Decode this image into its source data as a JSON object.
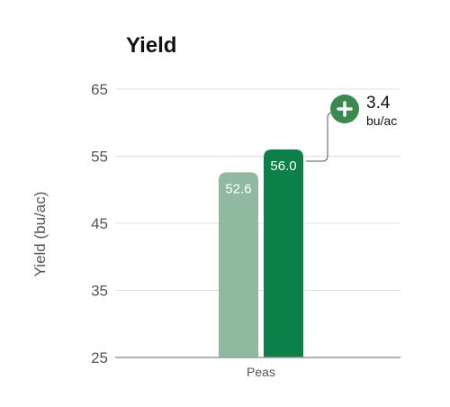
{
  "chart_data": {
    "type": "bar",
    "title": "Yield",
    "ylabel": "Yield (bu/ac)",
    "xlabel": "",
    "categories": [
      "Peas"
    ],
    "ylim": [
      25,
      65
    ],
    "yticks": [
      25,
      35,
      45,
      55,
      65
    ],
    "grid": true,
    "series": [
      {
        "values": [
          52.6
        ],
        "labels": [
          "52.6"
        ],
        "color": "#8fbaa0"
      },
      {
        "values": [
          56.0
        ],
        "labels": [
          "56.0"
        ],
        "color": "#0b8048"
      }
    ],
    "annotation": {
      "icon": "plus-circle-icon",
      "value": "3.4",
      "unit": "bu/ac",
      "color": "#3a8a4f"
    }
  }
}
